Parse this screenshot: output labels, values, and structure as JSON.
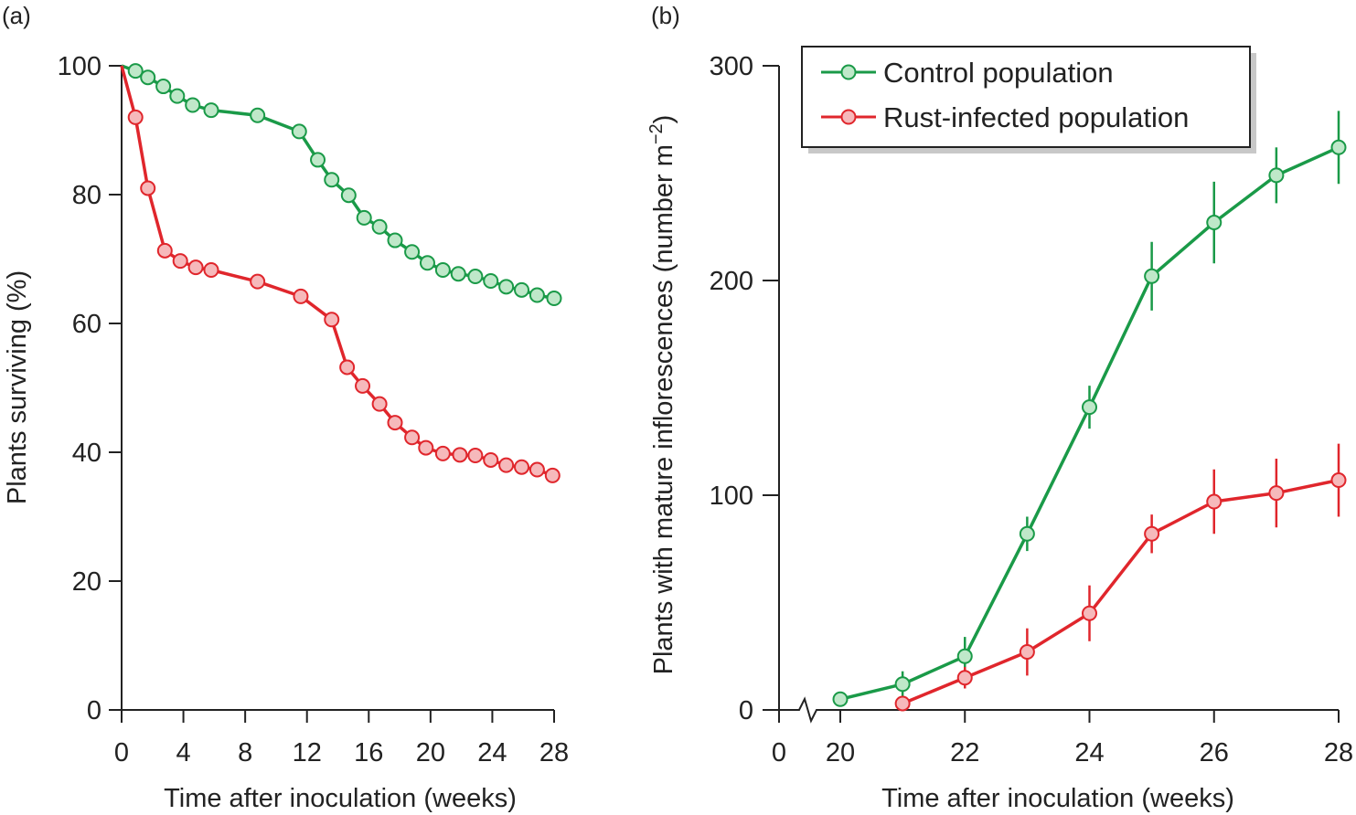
{
  "colors": {
    "control_line": "#1a9a48",
    "control_fill": "#bfe8c9",
    "rust_line": "#e0262c",
    "rust_fill": "#f6b9bb",
    "axis": "#222222"
  },
  "chart_data": [
    {
      "panel": "(a)",
      "type": "line",
      "xlabel": "Time after inoculation (weeks)",
      "ylabel": "Plants surviving (%)",
      "xlim": [
        0,
        28
      ],
      "ylim": [
        0,
        100
      ],
      "xticks": [
        0,
        4,
        8,
        12,
        16,
        20,
        24,
        28
      ],
      "xtick_labels": [
        "0",
        "4",
        "8",
        "12",
        "16",
        "20",
        "24",
        "28"
      ],
      "yticks": [
        0,
        20,
        40,
        60,
        80,
        100
      ],
      "ytick_labels": [
        "0",
        "20",
        "40",
        "60",
        "80",
        "100"
      ],
      "series": [
        {
          "name": "Control population",
          "color": "#1a9a48",
          "fill": "#bfe8c9",
          "x": [
            0,
            0.9,
            1.7,
            2.7,
            3.6,
            4.6,
            5.8,
            8.8,
            11.5,
            12.7,
            13.6,
            14.7,
            15.7,
            16.7,
            17.7,
            18.8,
            19.8,
            20.8,
            21.8,
            22.9,
            23.9,
            24.9,
            25.9,
            26.9,
            28
          ],
          "values": [
            100,
            99.2,
            98.2,
            96.8,
            95.3,
            93.9,
            93.1,
            92.3,
            89.8,
            85.4,
            82.3,
            79.9,
            76.4,
            75.0,
            72.9,
            71.1,
            69.4,
            68.3,
            67.7,
            67.3,
            66.6,
            65.7,
            65.2,
            64.4,
            63.9
          ]
        },
        {
          "name": "Rust-infected population",
          "color": "#e0262c",
          "fill": "#f6b9bb",
          "x": [
            0,
            0.9,
            1.7,
            2.8,
            3.8,
            4.8,
            5.8,
            8.8,
            11.6,
            13.6,
            14.6,
            15.6,
            16.7,
            17.7,
            18.8,
            19.7,
            20.8,
            21.9,
            22.9,
            23.9,
            24.9,
            25.9,
            26.9,
            27.9
          ],
          "values": [
            100,
            92.0,
            81.0,
            71.3,
            69.7,
            68.7,
            68.3,
            66.5,
            64.2,
            60.6,
            53.2,
            50.3,
            47.5,
            44.6,
            42.3,
            40.7,
            39.8,
            39.6,
            39.5,
            38.8,
            38.0,
            37.7,
            37.3,
            36.4
          ]
        }
      ]
    },
    {
      "panel": "(b)",
      "type": "line",
      "xlabel": "Time after inoculation (weeks)",
      "ylabel": "Plants with mature inflorescences (number m",
      "ylabel_sup": "−2",
      "ylabel_close": ")",
      "xlim": [
        19,
        28
      ],
      "axis_break": true,
      "ylim": [
        0,
        300
      ],
      "xticks": [
        20,
        22,
        24,
        26,
        28
      ],
      "xtick_labels": [
        "20",
        "22",
        "24",
        "26",
        "28"
      ],
      "x_origin_label": "0",
      "yticks": [
        0,
        100,
        200,
        300
      ],
      "ytick_labels": [
        "0",
        "100",
        "200",
        "300"
      ],
      "legend": {
        "position": "top-left",
        "entries": [
          "Control population",
          "Rust-infected population"
        ]
      },
      "series": [
        {
          "name": "Control population",
          "color": "#1a9a48",
          "fill": "#bfe8c9",
          "x": [
            20,
            21,
            22,
            23,
            24,
            25,
            26,
            27,
            28
          ],
          "values": [
            5,
            12,
            25,
            82,
            141,
            202,
            227,
            249,
            262
          ],
          "errors": [
            0,
            6,
            9,
            8,
            10,
            16,
            19,
            13,
            17
          ]
        },
        {
          "name": "Rust-infected population",
          "color": "#e0262c",
          "fill": "#f6b9bb",
          "x": [
            21,
            22,
            23,
            24,
            25,
            26,
            27,
            28
          ],
          "values": [
            3,
            15,
            27,
            45,
            82,
            97,
            101,
            107
          ],
          "errors": [
            0,
            5,
            11,
            13,
            9,
            15,
            16,
            17
          ]
        }
      ]
    }
  ]
}
